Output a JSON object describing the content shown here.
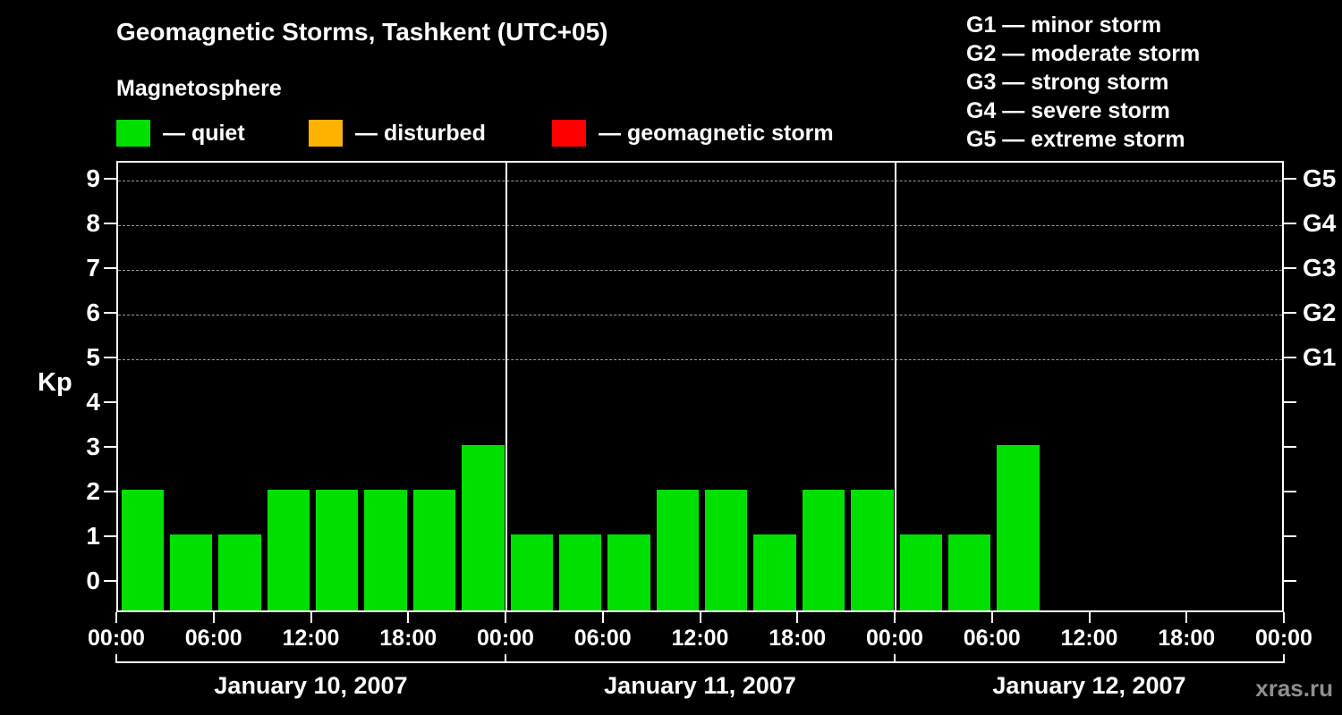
{
  "title": "Geomagnetic Storms, Tashkent (UTC+05)",
  "subtitle": "Magnetosphere",
  "legend": {
    "items": [
      {
        "label": "— quiet",
        "color": "#00e000"
      },
      {
        "label": "— disturbed",
        "color": "#ffb300"
      },
      {
        "label": "— geomagnetic storm",
        "color": "#ff0000"
      }
    ]
  },
  "g_legend": [
    "G1 — minor storm",
    "G2 — moderate storm",
    "G3 — strong storm",
    "G4 — severe storm",
    "G5 — extreme storm"
  ],
  "watermark": "xras.ru",
  "chart_data": {
    "type": "bar",
    "title": "Geomagnetic Storms, Tashkent (UTC+05)",
    "subtitle": "Magnetosphere",
    "ylabel": "Kp",
    "xlabel": "",
    "ylim": [
      0,
      9
    ],
    "y_ticks": [
      0,
      1,
      2,
      3,
      4,
      5,
      6,
      7,
      8,
      9
    ],
    "grid": "dashed horizontal gridlines at G-storm levels only",
    "grid_levels": [
      5,
      6,
      7,
      8,
      9
    ],
    "g_axis": [
      {
        "label": "G1",
        "value": 5
      },
      {
        "label": "G2",
        "value": 6
      },
      {
        "label": "G3",
        "value": 7
      },
      {
        "label": "G4",
        "value": 8
      },
      {
        "label": "G5",
        "value": 9
      }
    ],
    "x_tick_labels": [
      "00:00",
      "06:00",
      "12:00",
      "18:00",
      "00:00",
      "06:00",
      "12:00",
      "18:00",
      "00:00",
      "06:00",
      "12:00",
      "18:00",
      "00:00"
    ],
    "bar_interval_hours": 3,
    "bars_per_day": 8,
    "days": [
      {
        "date": "January 10, 2007",
        "values": [
          2,
          1,
          1,
          2,
          2,
          2,
          2,
          3
        ]
      },
      {
        "date": "January 11, 2007",
        "values": [
          1,
          1,
          1,
          2,
          2,
          1,
          2,
          2
        ]
      },
      {
        "date": "January 12, 2007",
        "values": [
          1,
          1,
          3,
          null,
          null,
          null,
          null,
          null
        ]
      }
    ],
    "colors": {
      "quiet": "#00e000",
      "disturbed": "#ffb300",
      "storm": "#ff0000"
    },
    "color_rule": "Kp<4 quiet, Kp=4 disturbed, Kp>=5 storm",
    "legend_position": "top-left and top-right"
  }
}
